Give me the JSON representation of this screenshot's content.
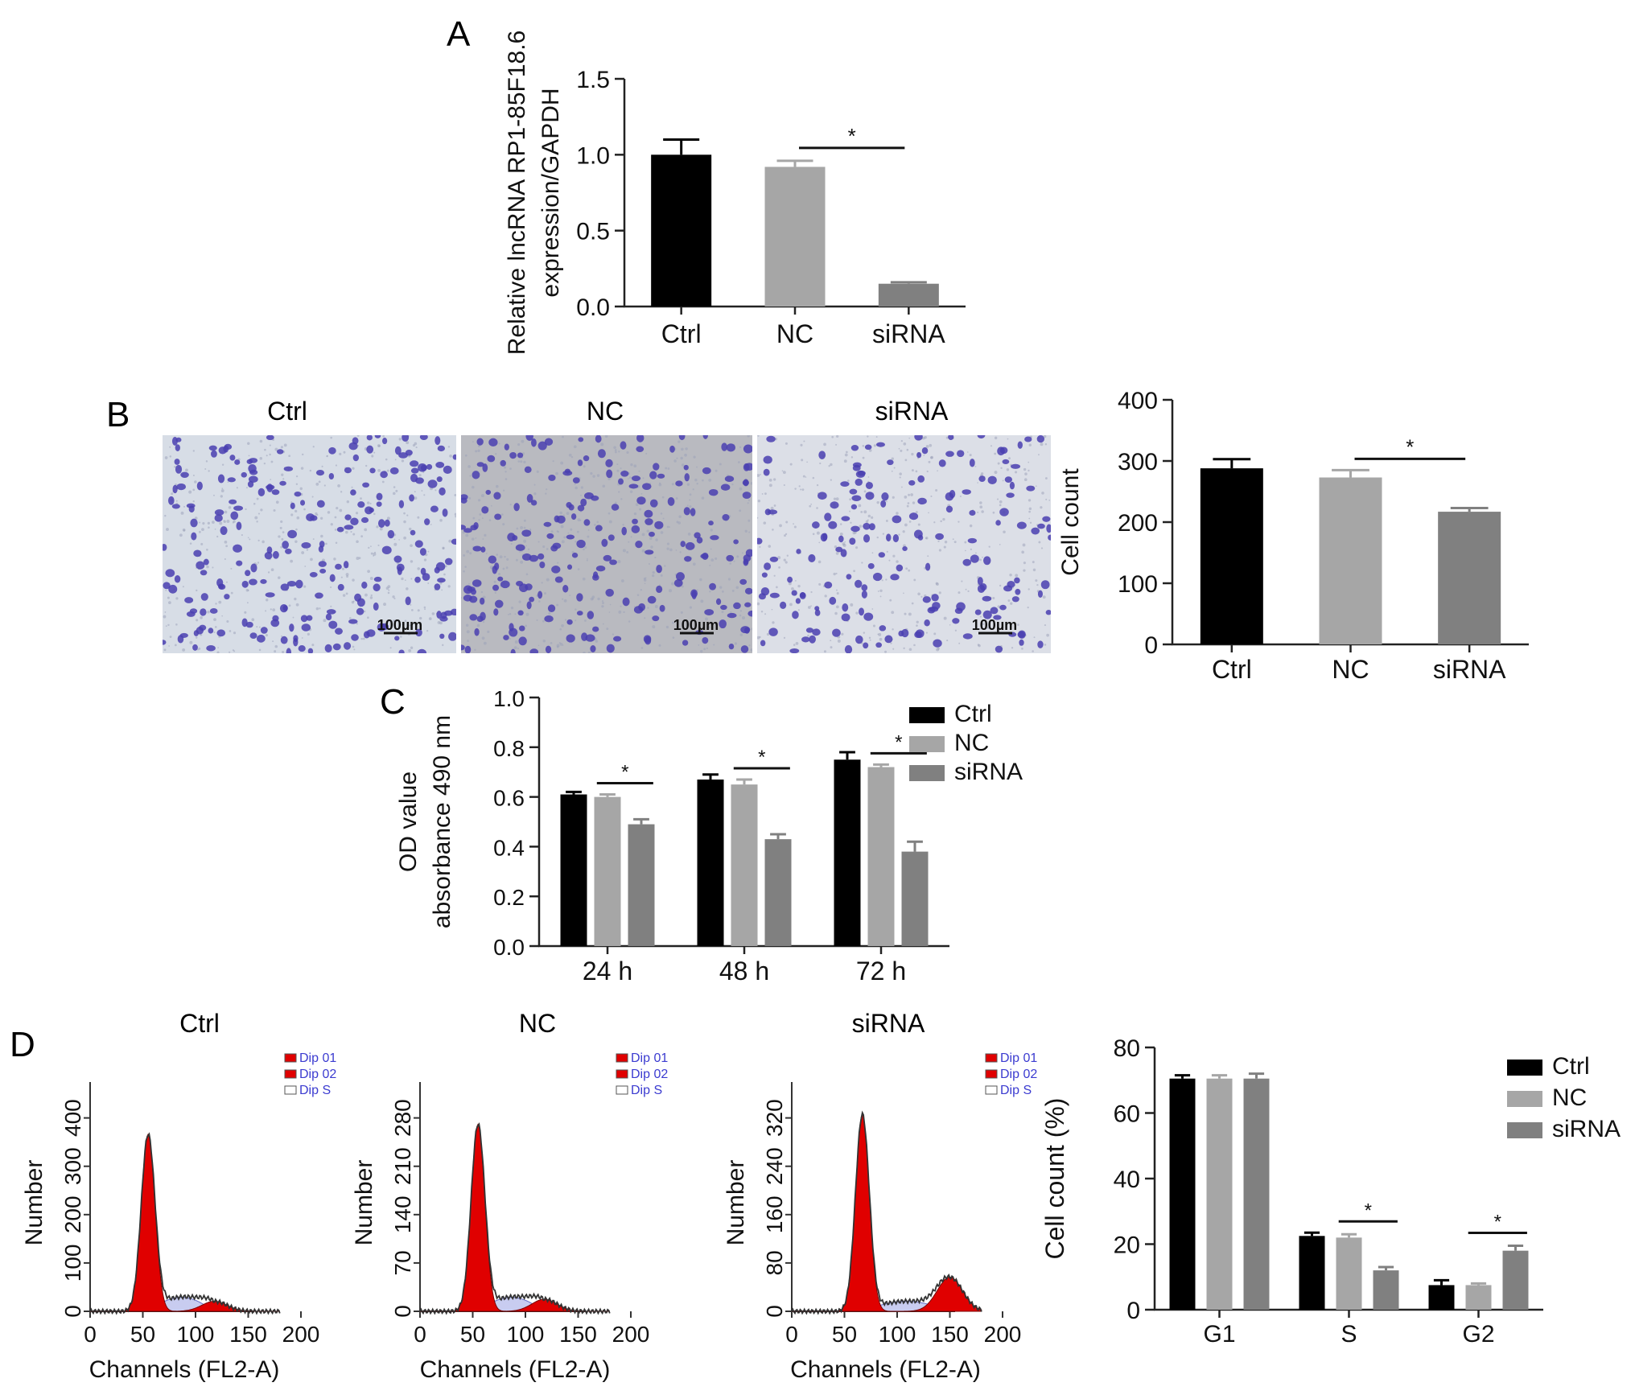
{
  "panel_letters": {
    "a": "A",
    "b": "B",
    "c": "C",
    "d": "D"
  },
  "colors": {
    "ctrl": "#000000",
    "nc": "#a6a6a6",
    "sirna": "#808080",
    "dip_red": "#e00000",
    "stain": "#4a3fb0"
  },
  "micrographs": {
    "titles": [
      "Ctrl",
      "NC",
      "siRNA"
    ],
    "scale_bar": "100µm",
    "backgrounds": [
      "#d7dde6",
      "#b9bac0",
      "#dcdfe7"
    ]
  },
  "flow": {
    "titles": [
      "Ctrl",
      "NC",
      "siRNA"
    ],
    "ylabel": "Number",
    "xlabel": "Channels (FL2-A)",
    "legend": [
      "Dip 01",
      "Dip 02",
      "Dip S"
    ],
    "x_ticks": [
      "0",
      "50",
      "100",
      "150",
      "200"
    ],
    "y_ticks": [
      [
        "0",
        "100",
        "200",
        "300",
        "400"
      ],
      [
        "0",
        "70",
        "140",
        "210",
        "280"
      ],
      [
        "0",
        "80",
        "160",
        "240",
        "320"
      ]
    ]
  },
  "chart_data": [
    {
      "type": "bar",
      "panel": "A",
      "categories": [
        "Ctrl",
        "NC",
        "siRNA"
      ],
      "values": [
        1.0,
        0.92,
        0.15
      ],
      "errors": [
        0.1,
        0.04,
        0.01
      ],
      "ylabel": "Relative lncRNA RP1-85F18.6 expression/GAPDH",
      "ylabel_lines": [
        "Relative lncRNA RP1-85F18.6",
        "expression/GAPDH"
      ],
      "ylim": [
        0,
        1.5
      ],
      "yticks": [
        "0.0",
        "0.5",
        "1.0",
        "1.5"
      ],
      "significance": [
        {
          "from": "NC",
          "to": "siRNA",
          "label": "*"
        }
      ]
    },
    {
      "type": "bar",
      "panel": "B",
      "categories": [
        "Ctrl",
        "NC",
        "siRNA"
      ],
      "values": [
        288,
        273,
        217
      ],
      "errors": [
        15,
        12,
        6
      ],
      "ylabel": "Cell count",
      "ylim": [
        0,
        400
      ],
      "yticks": [
        "0",
        "100",
        "200",
        "300",
        "400"
      ],
      "significance": [
        {
          "from": "NC",
          "to": "siRNA",
          "label": "*"
        }
      ]
    },
    {
      "type": "bar",
      "panel": "C",
      "categories": [
        "24 h",
        "48 h",
        "72 h"
      ],
      "series": [
        {
          "name": "Ctrl",
          "values": [
            0.61,
            0.67,
            0.75
          ],
          "errors": [
            0.01,
            0.02,
            0.03
          ]
        },
        {
          "name": "NC",
          "values": [
            0.6,
            0.65,
            0.72
          ],
          "errors": [
            0.01,
            0.02,
            0.01
          ]
        },
        {
          "name": "siRNA",
          "values": [
            0.49,
            0.43,
            0.38
          ],
          "errors": [
            0.02,
            0.02,
            0.04
          ]
        }
      ],
      "ylabel": "OD value absorbance 490 nm",
      "ylabel_lines": [
        "OD value",
        "absorbance 490 nm"
      ],
      "ylim": [
        0,
        1.0
      ],
      "yticks": [
        "0.0",
        "0.2",
        "0.4",
        "0.6",
        "0.8",
        "1.0"
      ],
      "legend": "top-right",
      "significance": [
        {
          "category": "24 h",
          "label": "*"
        },
        {
          "category": "48 h",
          "label": "*"
        },
        {
          "category": "72 h",
          "label": "*"
        }
      ]
    },
    {
      "type": "bar",
      "panel": "D",
      "categories": [
        "G1",
        "S",
        "G2"
      ],
      "series": [
        {
          "name": "Ctrl",
          "values": [
            70.5,
            22.5,
            7.5
          ],
          "errors": [
            1.0,
            1.0,
            1.5
          ]
        },
        {
          "name": "NC",
          "values": [
            70.5,
            22.0,
            7.5
          ],
          "errors": [
            1.0,
            1.0,
            0.5
          ]
        },
        {
          "name": "siRNA",
          "values": [
            70.5,
            12.0,
            18.0
          ],
          "errors": [
            1.5,
            1.0,
            1.5
          ]
        }
      ],
      "ylabel": "Cell count (%)",
      "ylim": [
        0,
        80
      ],
      "yticks": [
        "0",
        "20",
        "40",
        "60",
        "80"
      ],
      "legend": "top-right",
      "significance": [
        {
          "category": "S",
          "label": "*"
        },
        {
          "category": "G2",
          "label": "*"
        }
      ]
    }
  ]
}
